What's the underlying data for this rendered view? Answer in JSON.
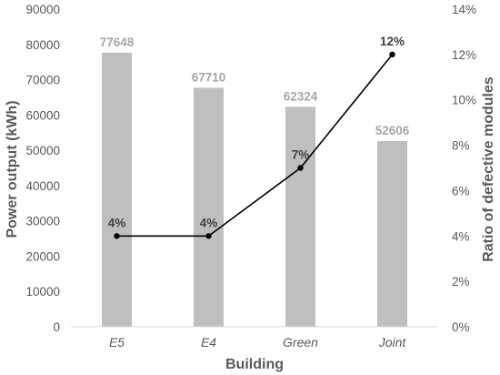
{
  "chart_data": {
    "type": "bar",
    "categories": [
      "E5",
      "E4",
      "Green",
      "Joint"
    ],
    "xlabel": "Building",
    "ylabel": "Power output (kWh)",
    "y2label": "Ratio of defective modules",
    "ylim": [
      0,
      90000
    ],
    "y2lim": [
      0,
      14
    ],
    "y_ticks": [
      "0",
      "10000",
      "20000",
      "30000",
      "40000",
      "50000",
      "60000",
      "70000",
      "80000",
      "90000"
    ],
    "y2_ticks": [
      "0%",
      "2%",
      "4%",
      "6%",
      "8%",
      "10%",
      "12%",
      "14%"
    ],
    "grid": false,
    "legend": "none",
    "series": [
      {
        "type": "bar",
        "axis": "left",
        "color": "#bfbfbf",
        "values": [
          77648,
          67710,
          62324,
          52606
        ],
        "labels": [
          "77648",
          "67710",
          "62324",
          "52606"
        ]
      },
      {
        "type": "line",
        "axis": "right",
        "color": "#000000",
        "values": [
          4,
          4,
          7,
          12
        ],
        "labels": [
          "4%",
          "4%",
          "7%",
          "12%"
        ]
      }
    ]
  }
}
